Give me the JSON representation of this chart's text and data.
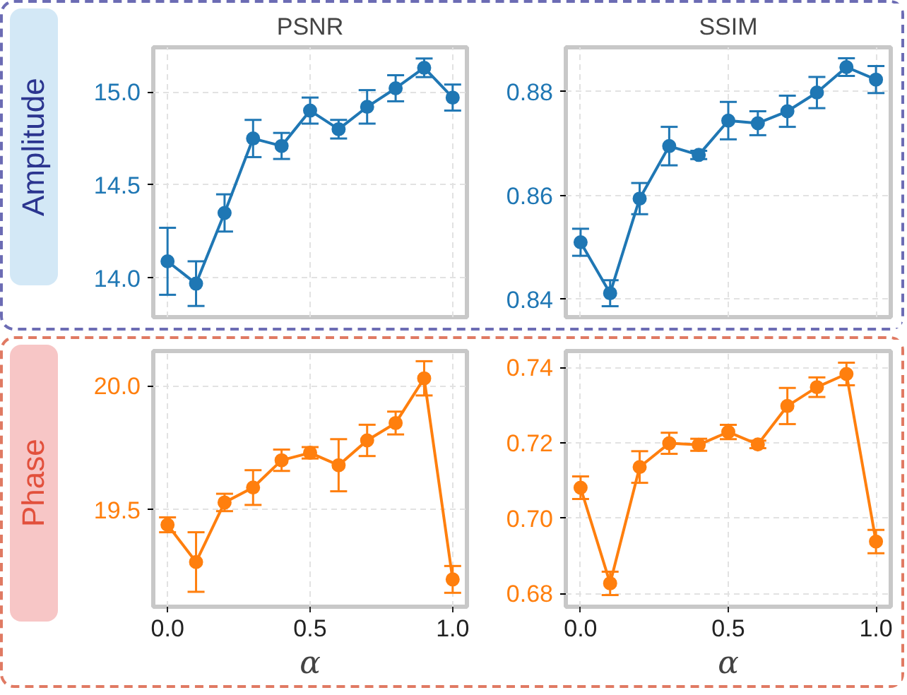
{
  "chart_data": [
    {
      "type": "line",
      "title": "PSNR",
      "ylabel": "Amplitude",
      "x": [
        0,
        0.1,
        0.2,
        0.3,
        0.4,
        0.5,
        0.6,
        0.7,
        0.8,
        0.9,
        1.0
      ],
      "series": [
        {
          "color": "#1f77b4",
          "values": [
            14.09,
            13.97,
            14.35,
            14.75,
            14.71,
            14.9,
            14.8,
            14.92,
            15.02,
            15.13,
            14.97
          ],
          "errors": [
            0.18,
            0.12,
            0.1,
            0.1,
            0.07,
            0.07,
            0.05,
            0.09,
            0.07,
            0.05,
            0.07
          ]
        }
      ],
      "xlim": [
        -0.05,
        1.05
      ],
      "ylim": [
        13.79,
        15.24
      ],
      "xticks": [
        0,
        0.5,
        1
      ],
      "yticks": [
        {
          "value": 14,
          "label": "14.0"
        },
        {
          "value": 14.5,
          "label": "14.5"
        },
        {
          "value": 15,
          "label": "15.0"
        }
      ],
      "grid": true,
      "marker": "circle",
      "tick_labels": "y"
    },
    {
      "type": "line",
      "title": "SSIM",
      "x": [
        0,
        0.1,
        0.2,
        0.3,
        0.4,
        0.5,
        0.6,
        0.7,
        0.8,
        0.9,
        1.0
      ],
      "series": [
        {
          "color": "#1f77b4",
          "values": [
            0.851,
            0.8412,
            0.8594,
            0.8695,
            0.8678,
            0.8744,
            0.8739,
            0.8762,
            0.8798,
            0.8847,
            0.8823
          ],
          "errors": [
            0.0026,
            0.0025,
            0.003,
            0.0037,
            0.0008,
            0.0036,
            0.0023,
            0.003,
            0.003,
            0.0017,
            0.0026
          ]
        }
      ],
      "xlim": [
        -0.05,
        1.05
      ],
      "ylim": [
        0.8366,
        0.8885
      ],
      "xticks": [
        0,
        0.5,
        1
      ],
      "yticks": [
        0.84,
        0.86,
        0.88
      ],
      "grid": true,
      "marker": "circle",
      "tick_labels": "y"
    },
    {
      "type": "line",
      "ylabel": "Phase",
      "xlabel": "α",
      "x": [
        0,
        0.1,
        0.2,
        0.3,
        0.4,
        0.5,
        0.6,
        0.7,
        0.8,
        0.9,
        1.0
      ],
      "series": [
        {
          "color": "#ff7f0e",
          "values": [
            19.44,
            19.29,
            19.53,
            19.59,
            19.7,
            19.73,
            19.68,
            19.78,
            19.85,
            20.03,
            19.22
          ],
          "errors": [
            0.03,
            0.12,
            0.035,
            0.07,
            0.043,
            0.023,
            0.105,
            0.063,
            0.046,
            0.069,
            0.054
          ]
        }
      ],
      "xlim": [
        -0.05,
        1.05
      ],
      "ylim": [
        19.11,
        20.14
      ],
      "xticks": [
        {
          "value": 0,
          "label": "0.0"
        },
        {
          "value": 0.5,
          "label": "0.5"
        },
        {
          "value": 1,
          "label": "1.0"
        }
      ],
      "yticks": [
        {
          "value": 19.5,
          "label": "19.5"
        },
        {
          "value": 20,
          "label": "20.0"
        }
      ],
      "grid": true,
      "marker": "circle"
    },
    {
      "type": "line",
      "xlabel": "α",
      "x": [
        0,
        0.1,
        0.2,
        0.3,
        0.4,
        0.5,
        0.6,
        0.7,
        0.8,
        0.9,
        1.0
      ],
      "series": [
        {
          "color": "#ff7f0e",
          "values": [
            0.7081,
            0.6827,
            0.7136,
            0.7199,
            0.7195,
            0.7229,
            0.7196,
            0.7298,
            0.7348,
            0.7383,
            0.6938
          ],
          "errors": [
            0.003,
            0.0031,
            0.0042,
            0.0028,
            0.0016,
            0.0019,
            0.001,
            0.0048,
            0.0026,
            0.003,
            0.0031
          ]
        }
      ],
      "xlim": [
        -0.05,
        1.05
      ],
      "ylim": [
        0.6765,
        0.7444
      ],
      "xticks": [
        {
          "value": 0,
          "label": "0.0"
        },
        {
          "value": 0.5,
          "label": "0.5"
        },
        {
          "value": 1,
          "label": "1.0"
        }
      ],
      "yticks": [
        {
          "value": 0.68,
          "label": "0.68"
        },
        {
          "value": 0.7,
          "label": "0.70"
        },
        {
          "value": 0.72,
          "label": "0.72"
        },
        {
          "value": 0.74,
          "label": "0.74"
        }
      ],
      "grid": true,
      "marker": "circle"
    }
  ]
}
